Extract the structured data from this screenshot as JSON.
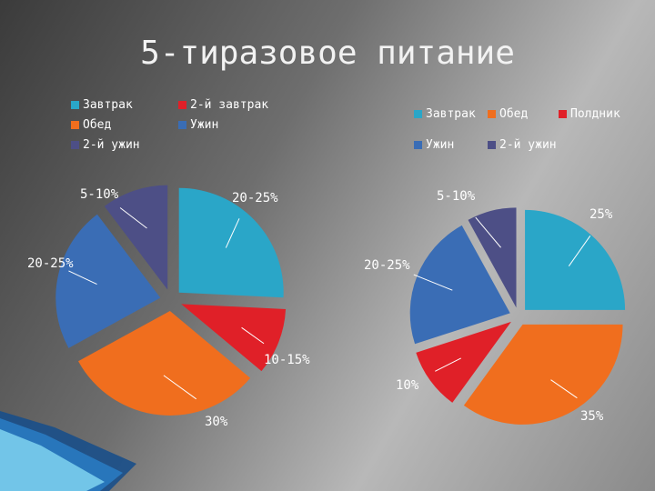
{
  "slide": {
    "title": "5-тиразовое питание"
  },
  "chart_data": [
    {
      "type": "pie",
      "legend": [
        "Завтрак",
        "2-й завтрак",
        "Обед",
        "Ужин",
        "2-й ужин"
      ],
      "legend_position": "top-left",
      "categories": [
        "Завтрак",
        "2-й завтрак",
        "Обед",
        "Ужин",
        "2-й ужин"
      ],
      "values": [
        25,
        10,
        30,
        22,
        10
      ],
      "data_labels": [
        "20-25%",
        "10-15%",
        "30%",
        "20-25%",
        "5-10%"
      ],
      "colors": [
        "#2aa6c8",
        "#e02028",
        "#f06e1e",
        "#3a6db5",
        "#4d4f86"
      ],
      "exploded": true
    },
    {
      "type": "pie",
      "legend": [
        "Завтрак",
        "Обед",
        "Полдник",
        "Ужин",
        "2-й ужин"
      ],
      "legend_position": "top-right",
      "categories": [
        "Завтрак",
        "Обед",
        "Полдник",
        "Ужин",
        "2-й ужин"
      ],
      "values": [
        25,
        35,
        10,
        22,
        8
      ],
      "data_labels": [
        "25%",
        "35%",
        "10%",
        "20-25%",
        "5-10%"
      ],
      "colors": [
        "#2aa6c8",
        "#f06e1e",
        "#e02028",
        "#3a6db5",
        "#4d4f86"
      ],
      "exploded": true
    }
  ]
}
